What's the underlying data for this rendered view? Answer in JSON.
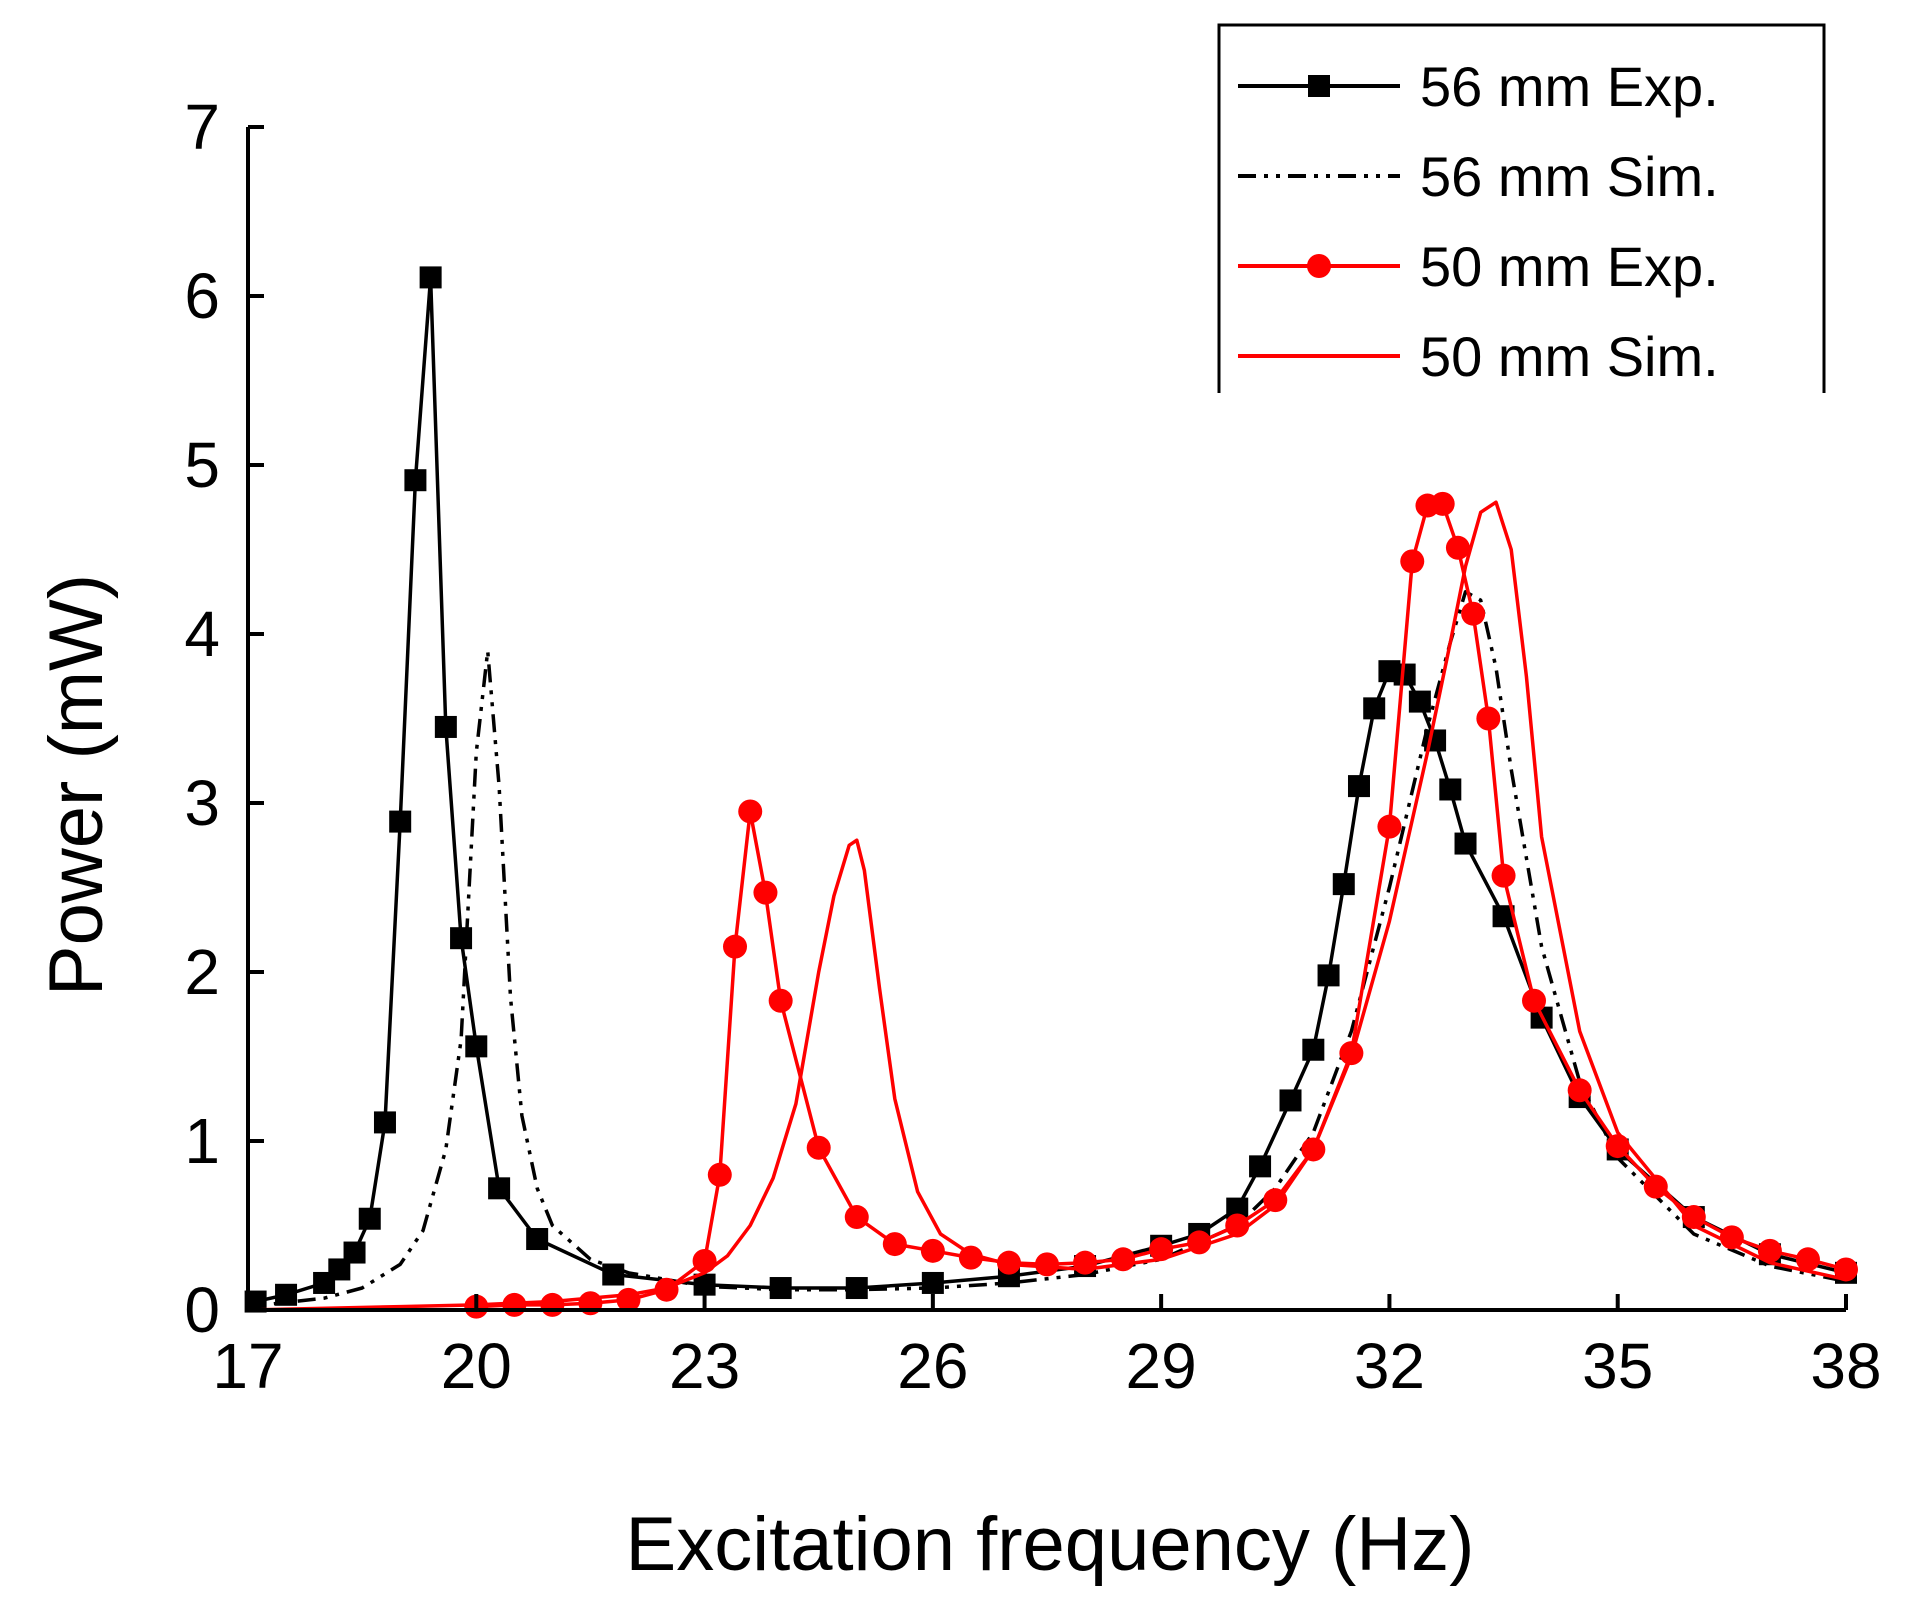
{
  "chart_data": {
    "type": "line",
    "title": "",
    "xlabel": "Excitation frequency (Hz)",
    "ylabel": "Power (mW)",
    "xlim": [
      17,
      38
    ],
    "ylim": [
      0,
      7
    ],
    "xticks": [
      17,
      20,
      23,
      26,
      29,
      32,
      35,
      38
    ],
    "yticks": [
      0,
      1,
      2,
      3,
      4,
      5,
      6,
      7
    ],
    "grid": false,
    "legend_position": "top-right",
    "series": [
      {
        "name": "56 mm Exp.",
        "color": "#000000",
        "line": "solid",
        "marker": "square",
        "x": [
          17.1,
          17.5,
          18.0,
          18.2,
          18.4,
          18.6,
          18.8,
          19.0,
          19.2,
          19.4,
          19.6,
          19.8,
          20.0,
          20.3,
          20.8,
          21.8,
          23.0,
          24.0,
          25.0,
          26.0,
          27.0,
          28.0,
          29.0,
          29.5,
          30.0,
          30.3,
          30.7,
          31.0,
          31.2,
          31.4,
          31.6,
          31.8,
          32.0,
          32.2,
          32.4,
          32.6,
          32.8,
          33.0,
          33.5,
          34.0,
          34.5,
          35.0,
          36.0,
          37.0,
          38.0
        ],
        "y": [
          0.05,
          0.09,
          0.16,
          0.24,
          0.34,
          0.54,
          1.11,
          2.89,
          4.91,
          6.11,
          3.45,
          2.2,
          1.56,
          0.72,
          0.42,
          0.21,
          0.15,
          0.13,
          0.13,
          0.16,
          0.2,
          0.26,
          0.38,
          0.45,
          0.6,
          0.85,
          1.24,
          1.54,
          1.98,
          2.52,
          3.1,
          3.56,
          3.78,
          3.76,
          3.6,
          3.37,
          3.08,
          2.76,
          2.33,
          1.73,
          1.26,
          0.95,
          0.55,
          0.33,
          0.22
        ]
      },
      {
        "name": "56 mm Sim.",
        "color": "#000000",
        "line": "dash-dot",
        "marker": "none",
        "x": [
          17.0,
          18.0,
          18.5,
          19.0,
          19.3,
          19.6,
          19.8,
          20.0,
          20.15,
          20.3,
          20.45,
          20.6,
          20.8,
          21.0,
          21.5,
          22.0,
          23.0,
          24.0,
          25.0,
          26.0,
          27.0,
          28.0,
          29.0,
          30.0,
          30.5,
          31.0,
          31.5,
          32.0,
          32.5,
          32.8,
          33.0,
          33.2,
          33.4,
          33.6,
          34.0,
          34.5,
          35.0,
          36.0,
          37.0,
          38.0
        ],
        "y": [
          0.02,
          0.07,
          0.13,
          0.27,
          0.47,
          0.95,
          1.6,
          3.3,
          3.9,
          3.1,
          1.85,
          1.15,
          0.72,
          0.5,
          0.3,
          0.22,
          0.14,
          0.12,
          0.12,
          0.13,
          0.16,
          0.21,
          0.3,
          0.5,
          0.72,
          1.05,
          1.65,
          2.5,
          3.45,
          3.95,
          4.25,
          4.2,
          3.8,
          3.2,
          2.15,
          1.35,
          0.9,
          0.45,
          0.26,
          0.17
        ]
      },
      {
        "name": "50 mm Exp.",
        "color": "#ff0000",
        "line": "solid",
        "marker": "circle",
        "x": [
          20.0,
          20.5,
          21.0,
          21.5,
          22.0,
          22.5,
          23.0,
          23.2,
          23.4,
          23.6,
          23.8,
          24.0,
          24.5,
          25.0,
          25.5,
          26.0,
          26.5,
          27.0,
          27.5,
          28.0,
          28.5,
          29.0,
          29.5,
          30.0,
          30.5,
          31.0,
          31.5,
          32.0,
          32.3,
          32.5,
          32.7,
          32.9,
          33.1,
          33.3,
          33.5,
          33.9,
          34.5,
          35.0,
          35.5,
          36.0,
          36.5,
          37.0,
          37.5,
          38.0
        ],
        "y": [
          0.02,
          0.03,
          0.03,
          0.04,
          0.06,
          0.12,
          0.29,
          0.8,
          2.15,
          2.95,
          2.47,
          1.83,
          0.96,
          0.55,
          0.39,
          0.35,
          0.31,
          0.28,
          0.27,
          0.28,
          0.3,
          0.36,
          0.4,
          0.5,
          0.65,
          0.95,
          1.52,
          2.86,
          4.43,
          4.76,
          4.77,
          4.51,
          4.12,
          3.5,
          2.57,
          1.83,
          1.3,
          0.97,
          0.73,
          0.55,
          0.43,
          0.35,
          0.3,
          0.24
        ]
      },
      {
        "name": "50 mm Sim.",
        "color": "#ff0000",
        "line": "solid",
        "marker": "none",
        "x": [
          17.0,
          19.0,
          20.0,
          21.0,
          22.0,
          22.5,
          23.0,
          23.3,
          23.6,
          23.9,
          24.2,
          24.5,
          24.7,
          24.9,
          25.0,
          25.1,
          25.3,
          25.5,
          25.8,
          26.1,
          26.5,
          27.0,
          28.0,
          29.0,
          30.0,
          30.5,
          31.0,
          31.5,
          32.0,
          32.5,
          32.8,
          33.0,
          33.2,
          33.4,
          33.6,
          33.8,
          34.0,
          34.5,
          35.0,
          36.0,
          37.0,
          38.0
        ],
        "y": [
          0.0,
          0.02,
          0.03,
          0.05,
          0.09,
          0.13,
          0.22,
          0.32,
          0.5,
          0.78,
          1.22,
          2.0,
          2.45,
          2.75,
          2.78,
          2.6,
          1.9,
          1.25,
          0.7,
          0.45,
          0.33,
          0.27,
          0.24,
          0.3,
          0.45,
          0.62,
          0.95,
          1.5,
          2.3,
          3.3,
          3.95,
          4.4,
          4.72,
          4.78,
          4.5,
          3.75,
          2.8,
          1.65,
          1.05,
          0.5,
          0.28,
          0.18
        ]
      }
    ]
  }
}
